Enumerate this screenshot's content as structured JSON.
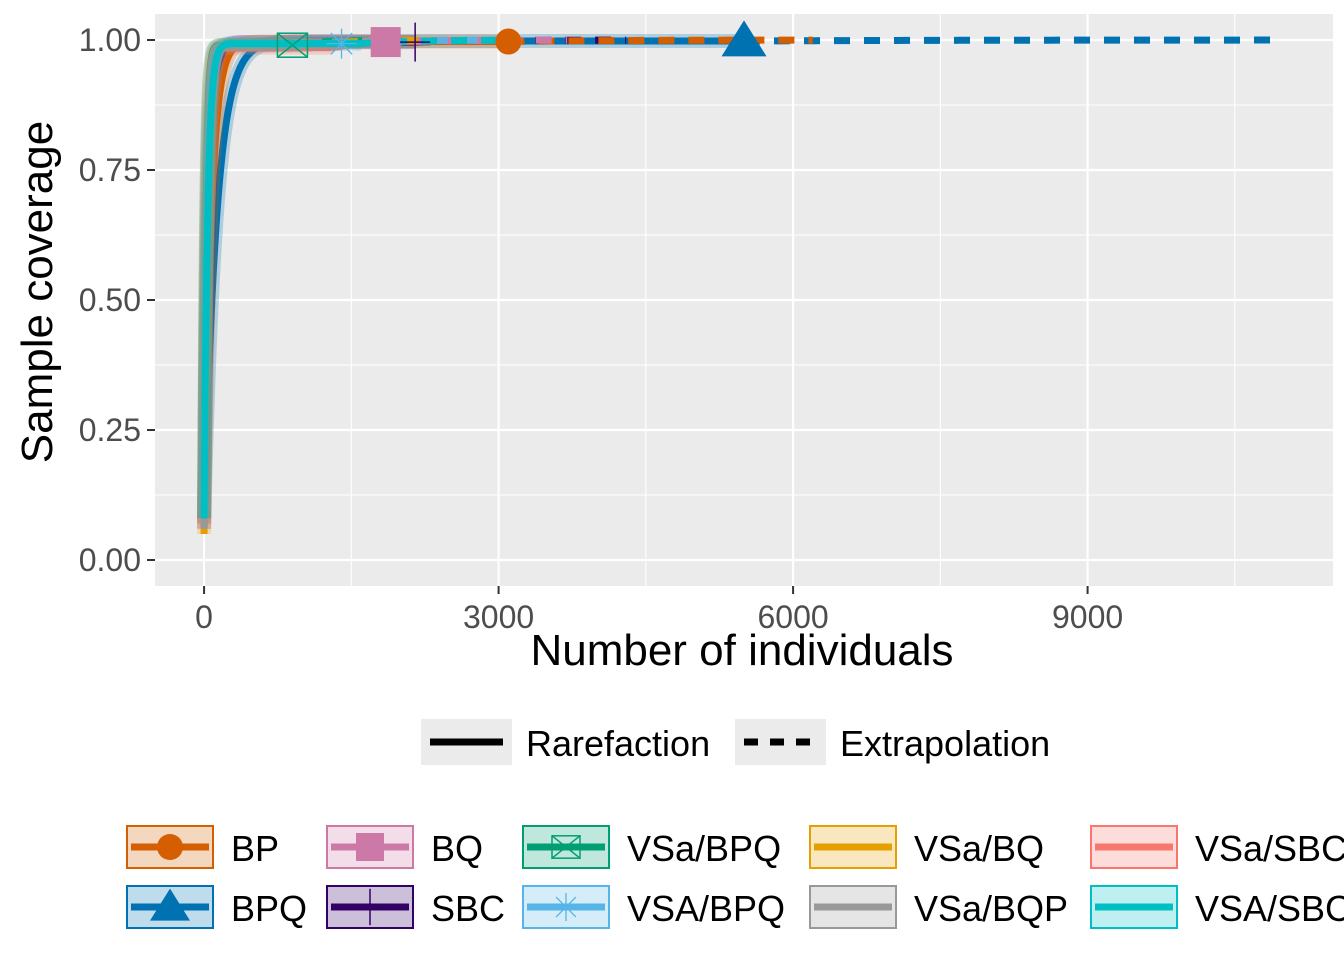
{
  "chart_data": {
    "type": "line",
    "xlabel": "Number of individuals",
    "ylabel": "Sample coverage",
    "xlim": [
      -500,
      11500
    ],
    "ylim": [
      -0.05,
      1.05
    ],
    "x_ticks": [
      0,
      3000,
      6000,
      9000
    ],
    "x_tick_labels": [
      "0",
      "3000",
      "6000",
      "9000"
    ],
    "y_ticks": [
      0,
      0.25,
      0.5,
      0.75,
      1
    ],
    "y_tick_labels": [
      "0.00",
      "0.25",
      "0.50",
      "0.75",
      "1.00"
    ],
    "grid": true,
    "legend_position": "bottom",
    "method_legend": [
      {
        "label": "Rarefaction",
        "linetype": "solid"
      },
      {
        "label": "Extrapolation",
        "linetype": "dashed"
      }
    ],
    "series": [
      {
        "name": "BP",
        "color": "#D55E00",
        "marker": "circle",
        "observed_n": 3100,
        "end_n": 6200,
        "observed_coverage": 0.997,
        "start_coverage": 0.07
      },
      {
        "name": "BQ",
        "color": "#CC79A7",
        "marker": "square",
        "observed_n": 1850,
        "end_n": 3700,
        "observed_coverage": 0.996,
        "start_coverage": 0.06
      },
      {
        "name": "VSa/BPQ",
        "color": "#009E73",
        "marker": "square-x",
        "observed_n": 900,
        "end_n": 1800,
        "observed_coverage": 0.99,
        "start_coverage": 0.08
      },
      {
        "name": "VSa/BQ",
        "color": "#E69F00",
        "marker": "none",
        "observed_n": 1100,
        "end_n": 2200,
        "observed_coverage": 0.99,
        "start_coverage": 0.05
      },
      {
        "name": "VSa/SBC",
        "color": "#F8766D",
        "marker": "none",
        "observed_n": 1300,
        "end_n": 2600,
        "observed_coverage": 0.985,
        "start_coverage": 0.06
      },
      {
        "name": "BPQ",
        "color": "#0072B2",
        "marker": "triangle",
        "observed_n": 5500,
        "end_n": 11000,
        "observed_coverage": 0.998,
        "start_coverage": 0.07
      },
      {
        "name": "SBC",
        "color": "#330066",
        "marker": "plus",
        "observed_n": 2150,
        "end_n": 4300,
        "observed_coverage": 0.996,
        "start_coverage": 0.08
      },
      {
        "name": "VSA/BPQ",
        "color": "#56B4E9",
        "marker": "asterisk",
        "observed_n": 1400,
        "end_n": 2800,
        "observed_coverage": 0.993,
        "start_coverage": 0.09
      },
      {
        "name": "VSa/BQP",
        "color": "#999999",
        "marker": "none",
        "observed_n": 1000,
        "end_n": 2000,
        "observed_coverage": 0.99,
        "start_coverage": 0.06
      },
      {
        "name": "VSA/SBC",
        "color": "#00BFC4",
        "marker": "none",
        "observed_n": 1600,
        "end_n": 3200,
        "observed_coverage": 0.993,
        "start_coverage": 0.08
      }
    ]
  }
}
